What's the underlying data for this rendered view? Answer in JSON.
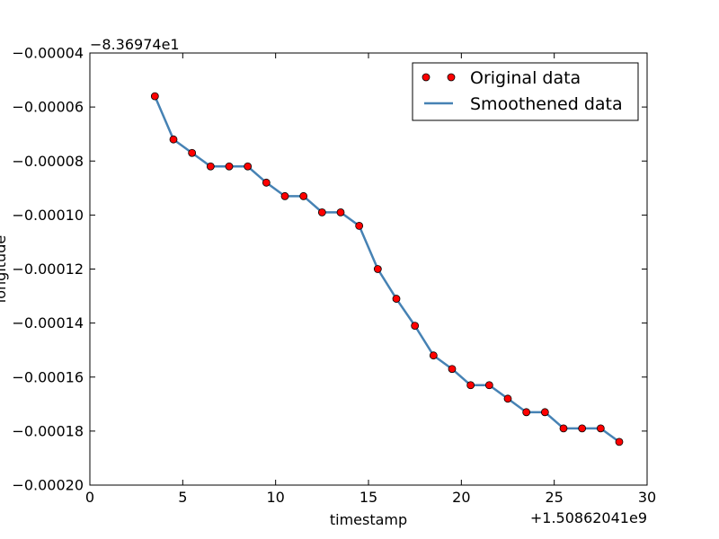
{
  "chart_data": {
    "type": "line",
    "xlabel": "timestamp",
    "ylabel": "longitude",
    "x_offset_label": "+1.50862041e9",
    "y_offset_label": "−8.36974e1",
    "xlim": [
      0,
      30
    ],
    "ylim": [
      -0.0002,
      -4e-05
    ],
    "x_ticks": [
      0,
      5,
      10,
      15,
      20,
      25,
      30
    ],
    "x_tick_labels": [
      "0",
      "5",
      "10",
      "15",
      "20",
      "25",
      "30"
    ],
    "y_ticks": [
      -0.0002,
      -0.00018,
      -0.00016,
      -0.00014,
      -0.00012,
      -0.0001,
      -8e-05,
      -6e-05,
      -4e-05
    ],
    "y_tick_labels": [
      "−0.00020",
      "−0.00018",
      "−0.00016",
      "−0.00014",
      "−0.00012",
      "−0.00010",
      "−0.00008",
      "−0.00006",
      "−0.00004"
    ],
    "grid": false,
    "legend_position": "top-right",
    "x": [
      3.5,
      4.5,
      5.5,
      6.5,
      7.5,
      8.5,
      9.5,
      10.5,
      11.5,
      12.5,
      13.5,
      14.5,
      15.5,
      16.5,
      17.5,
      18.5,
      19.5,
      20.5,
      21.5,
      22.5,
      23.5,
      24.5,
      25.5,
      26.5,
      27.5,
      28.5
    ],
    "series": [
      {
        "name": "Original data",
        "style": "markers",
        "color": "#ff0000",
        "values": [
          -5.6e-05,
          -7.2e-05,
          -7.7e-05,
          -8.2e-05,
          -8.2e-05,
          -8.2e-05,
          -8.8e-05,
          -9.3e-05,
          -9.3e-05,
          -9.9e-05,
          -9.9e-05,
          -0.000104,
          -0.00012,
          -0.000131,
          -0.000141,
          -0.000152,
          -0.000157,
          -0.000163,
          -0.000163,
          -0.000168,
          -0.000173,
          -0.000173,
          -0.000179,
          -0.000179,
          -0.000179,
          -0.000184
        ]
      },
      {
        "name": "Smoothened data",
        "style": "line",
        "color": "#4682b4",
        "values": [
          -5.6e-05,
          -7.2e-05,
          -7.7e-05,
          -8.2e-05,
          -8.2e-05,
          -8.2e-05,
          -8.8e-05,
          -9.3e-05,
          -9.3e-05,
          -9.9e-05,
          -9.9e-05,
          -0.000104,
          -0.00012,
          -0.000131,
          -0.000141,
          -0.000152,
          -0.000157,
          -0.000163,
          -0.000163,
          -0.000168,
          -0.000173,
          -0.000173,
          -0.000179,
          -0.000179,
          -0.000179,
          -0.000184
        ]
      }
    ]
  }
}
